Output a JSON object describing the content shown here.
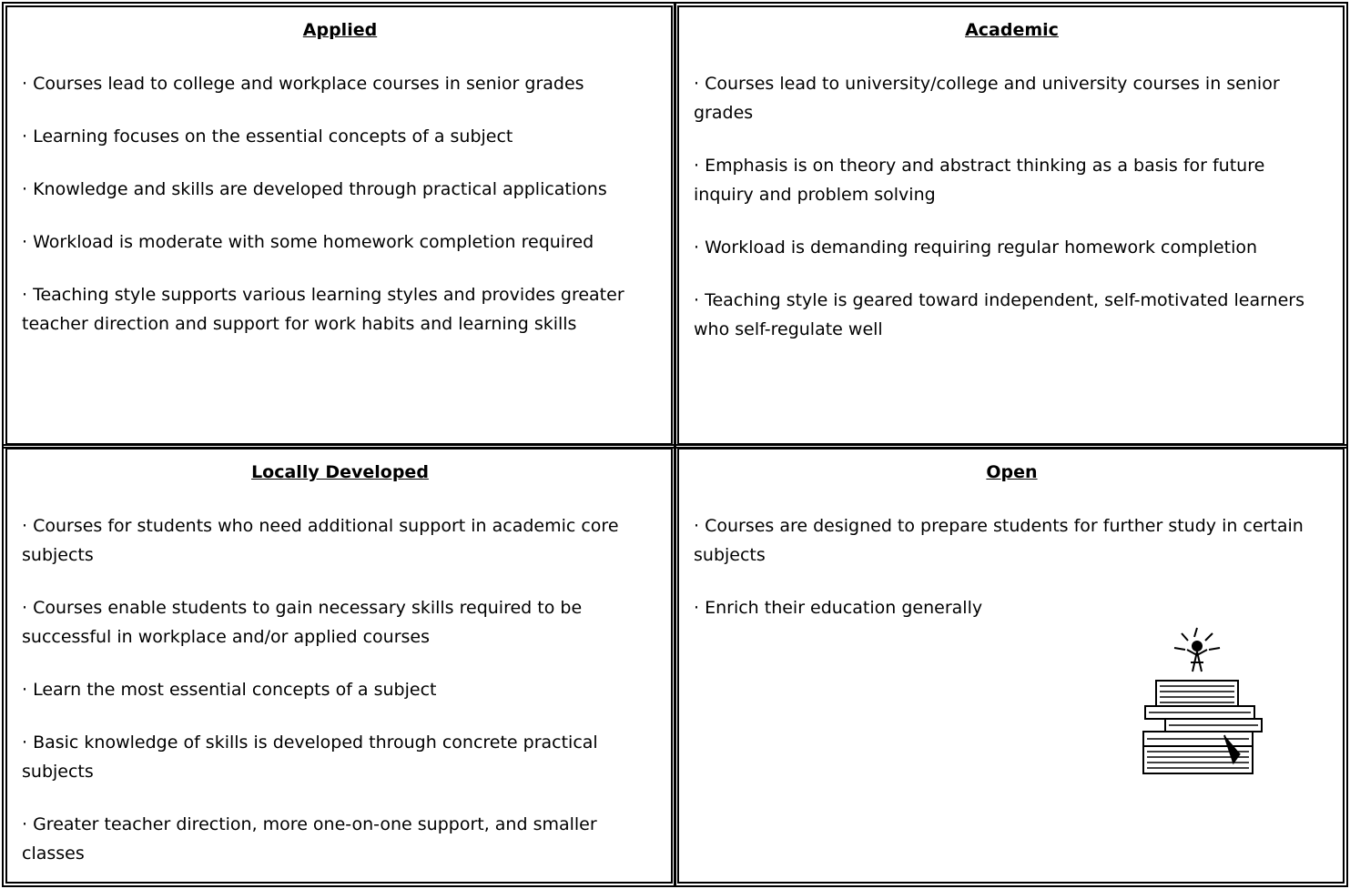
{
  "cells": [
    {
      "title": "Applied",
      "items": [
        "· Courses lead to college and workplace courses in senior grades",
        "· Learning focuses on the essential concepts of a subject",
        "· Knowledge and skills are developed through practical applications",
        "· Workload is moderate with some homework completion required",
        "· Teaching style supports various learning styles and provides greater teacher direction and support for work habits and learning skills"
      ]
    },
    {
      "title": "Academic",
      "items": [
        "· Courses lead to university/college and university courses in senior grades",
        "· Emphasis is on theory and abstract thinking as a basis for future inquiry and problem solving",
        "· Workload is demanding requiring regular homework completion",
        "· Teaching style is geared toward independent, self-motivated learners who self-regulate well"
      ]
    },
    {
      "title": "Locally Developed",
      "items": [
        "· Courses for students who need additional support in academic core subjects",
        "· Courses enable students to gain necessary skills required to be successful in workplace and/or applied courses",
        "· Learn the most essential concepts of a subject",
        "· Basic knowledge of skills is developed through concrete practical subjects",
        "· Greater teacher direction, more one-on-one support, and smaller classes"
      ]
    },
    {
      "title": "Open",
      "items": [
        "· Courses are designed to prepare students for further study in certain subjects",
        "· Enrich their education generally"
      ]
    }
  ]
}
